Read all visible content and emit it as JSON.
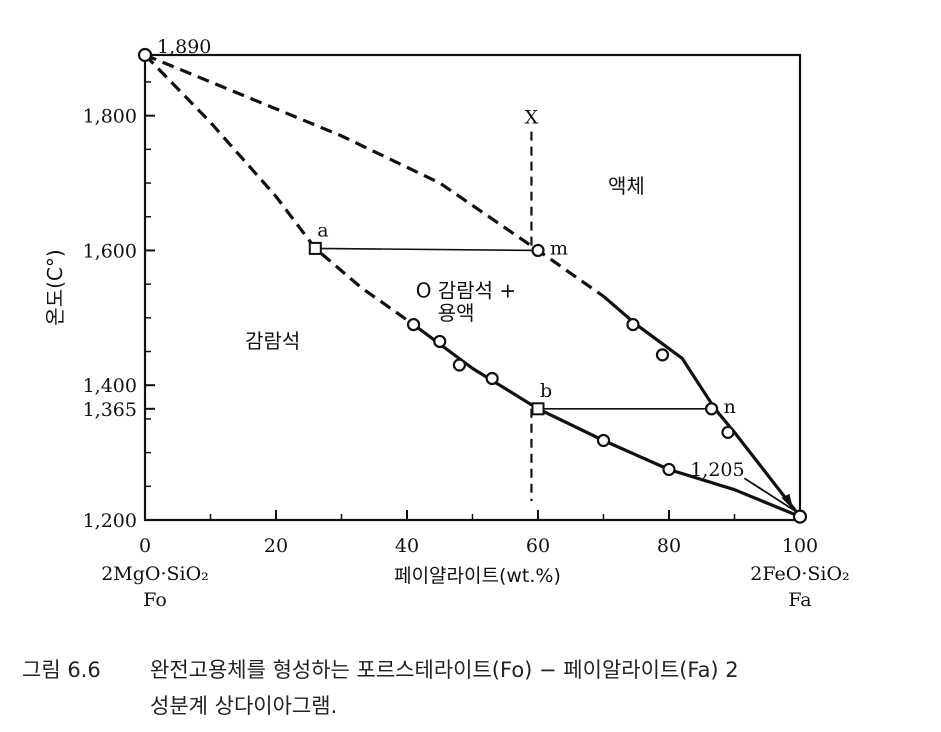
{
  "chart_data": {
    "type": "line",
    "title": "",
    "xlabel": "페이얄라이트(wt.%)",
    "ylabel": "온도(C°)",
    "xlim": [
      0,
      100
    ],
    "ylim": [
      1200,
      1890
    ],
    "x_ticks": [
      "0",
      "20",
      "40",
      "60",
      "80",
      "100"
    ],
    "y_ticks": [
      {
        "value": 1200,
        "label": "1,200"
      },
      {
        "value": 1365,
        "label": "1,365"
      },
      {
        "value": 1400,
        "label": "1,400"
      },
      {
        "value": 1600,
        "label": "1,600"
      },
      {
        "value": 1800,
        "label": "1,800"
      }
    ],
    "x_end_labels": {
      "left": [
        "2MgO·SiO₂",
        "Fo"
      ],
      "right": [
        "2FeO·SiO₂",
        "Fa"
      ]
    },
    "series": [
      {
        "style": "liquidus",
        "dashed_x": [
          0,
          15,
          30,
          45,
          60,
          70
        ],
        "dashed_y": [
          1890,
          1830,
          1770,
          1700,
          1600,
          1532
        ],
        "solid_x": [
          70,
          75,
          82,
          87,
          90,
          100
        ],
        "solid_y": [
          1532,
          1490,
          1440,
          1365,
          1330,
          1205
        ],
        "points_x": [
          60,
          74.5,
          79,
          86.5,
          89
        ],
        "points_y": [
          1600,
          1490,
          1445,
          1365,
          1330
        ]
      },
      {
        "style": "solidus",
        "dashed_x": [
          0,
          10,
          20,
          26,
          33,
          41
        ],
        "dashed_y": [
          1890,
          1790,
          1680,
          1603,
          1545,
          1490
        ],
        "solid_x": [
          41,
          50,
          60,
          70,
          80,
          90,
          100
        ],
        "solid_y": [
          1490,
          1425,
          1365,
          1318,
          1275,
          1245,
          1205
        ],
        "points_x": [
          41,
          45,
          48,
          53,
          70,
          80
        ],
        "points_y": [
          1490,
          1465,
          1430,
          1410,
          1318,
          1275
        ]
      }
    ],
    "melting_points": [
      {
        "x": 0,
        "y": 1890,
        "label": "1,890"
      },
      {
        "x": 100,
        "y": 1205,
        "label": "1,205"
      }
    ],
    "tie_lines": [
      {
        "x1": 26,
        "y1": 1603,
        "x2": 60,
        "y2": 1600,
        "left_label": "a",
        "right_label": "m"
      },
      {
        "x1": 60,
        "y1": 1365,
        "x2": 86.5,
        "y2": 1365,
        "left_label": "b",
        "right_label": "n"
      }
    ],
    "vertical_path": {
      "x": 59,
      "label": "X",
      "top": 1800,
      "bottom": 1228
    },
    "annotations": {
      "liquid": "액체",
      "two_phase_line1": "O 감람석 +",
      "two_phase_line2": "용액",
      "solid": "감람석"
    }
  },
  "caption": {
    "number": "그림 6.6",
    "line1": "완전고용체를 형성하는 포르스테라이트(Fo) − 페이알라이트(Fa) 2",
    "line2": "성분계 상다이아그램."
  }
}
